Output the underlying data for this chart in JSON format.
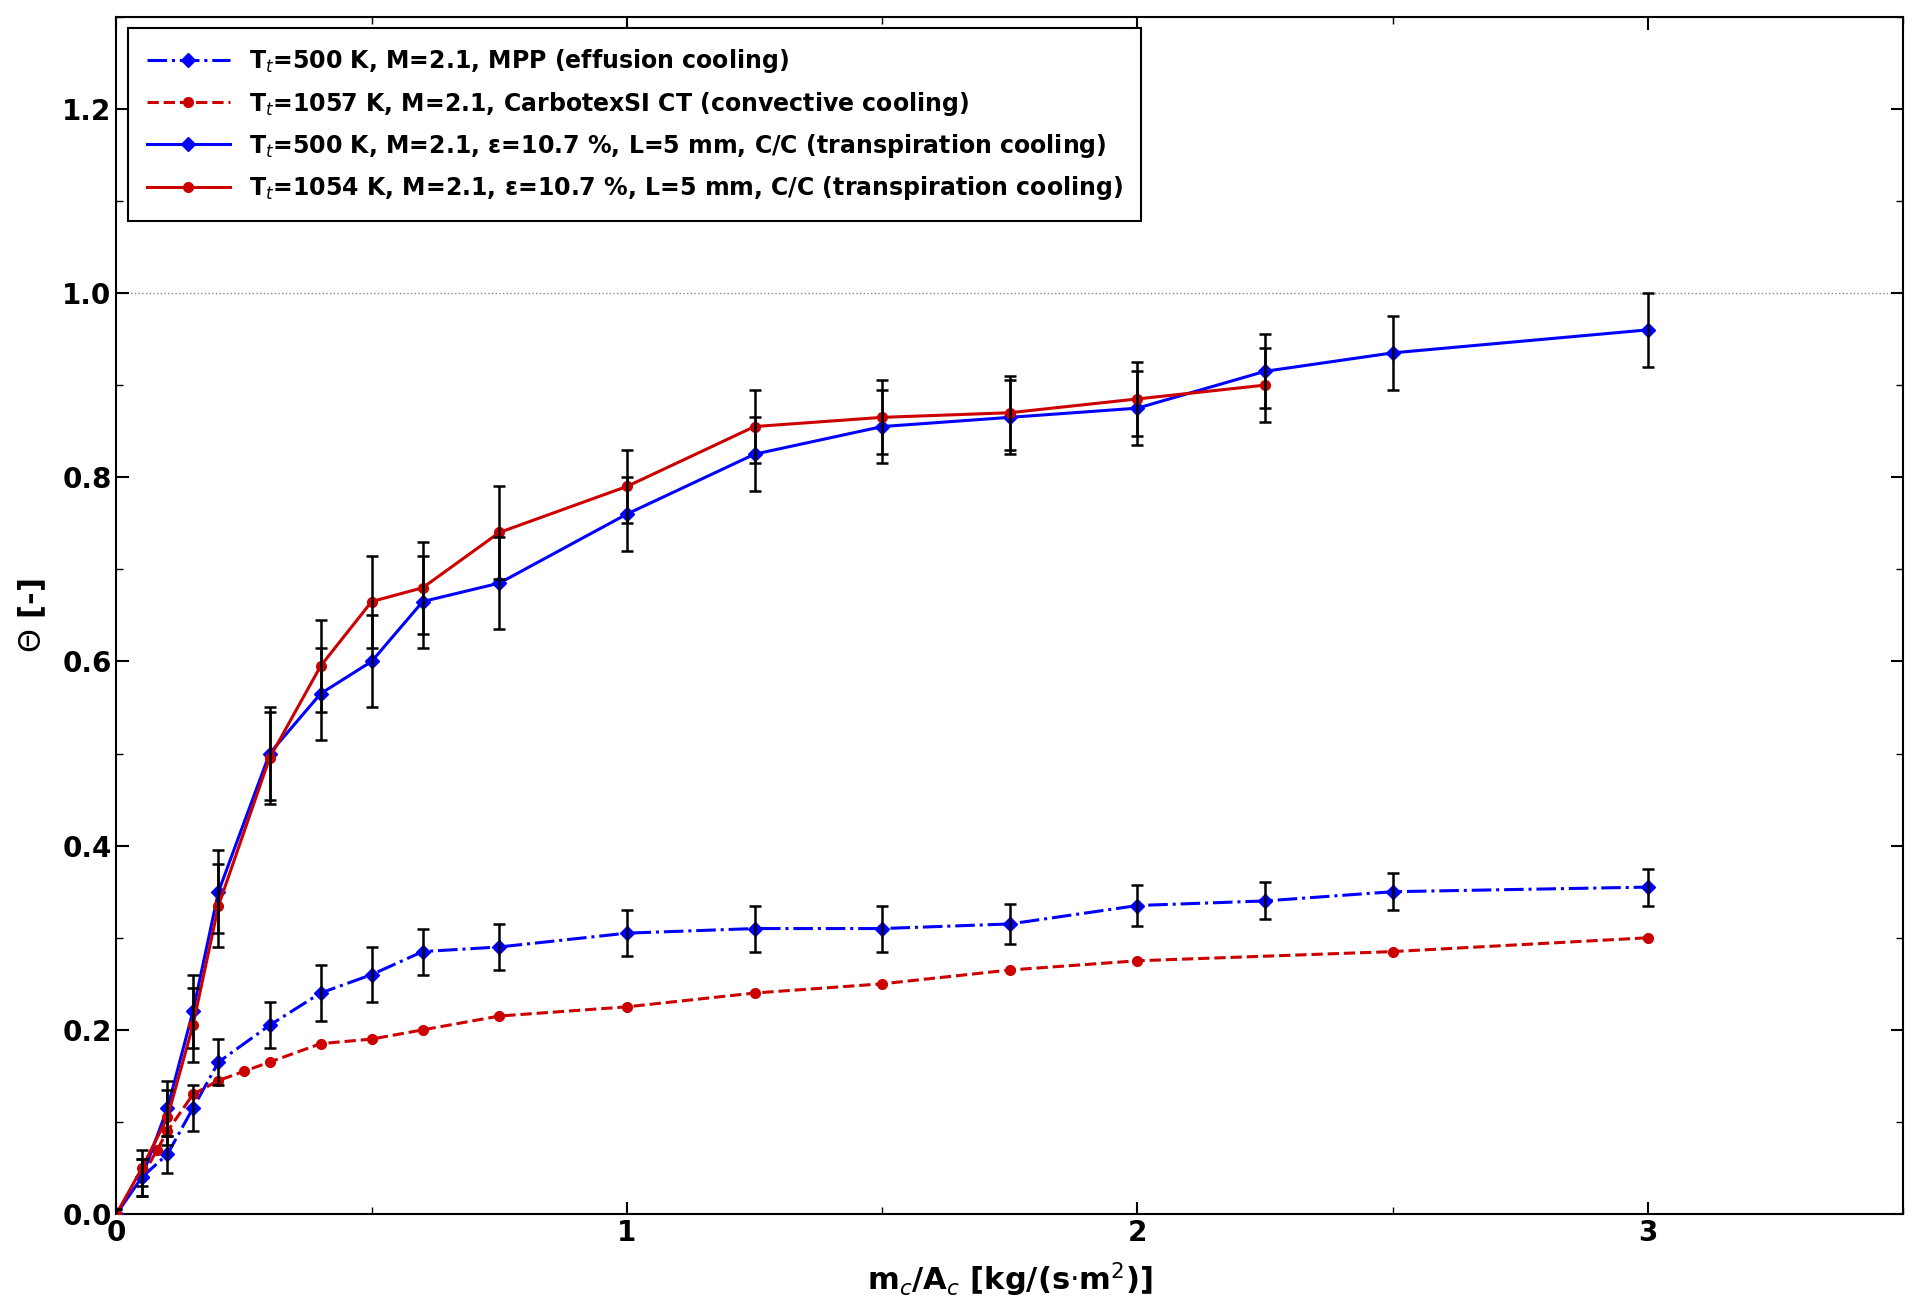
{
  "xlabel": "m$_c$/A$_c$ [kg/(s·m$^2$)]",
  "ylabel": "Θ [-]",
  "xlim": [
    0,
    3.5
  ],
  "ylim": [
    0,
    1.3
  ],
  "xticks": [
    0,
    1,
    2,
    3
  ],
  "yticks": [
    0,
    0.2,
    0.4,
    0.6,
    0.8,
    1.0,
    1.2
  ],
  "series": [
    {
      "label": "T$_t$=500 K, M=2.1, MPP (effusion cooling)",
      "color": "#0000ff",
      "linestyle": "-.",
      "marker": "D",
      "markersize": 7,
      "linewidth": 2.2,
      "x": [
        0.05,
        0.1,
        0.15,
        0.2,
        0.3,
        0.4,
        0.5,
        0.6,
        0.75,
        1.0,
        1.25,
        1.5,
        1.75,
        2.0,
        2.25,
        2.5,
        3.0
      ],
      "y": [
        0.04,
        0.065,
        0.115,
        0.165,
        0.205,
        0.24,
        0.26,
        0.285,
        0.29,
        0.305,
        0.31,
        0.31,
        0.315,
        0.335,
        0.34,
        0.35,
        0.355
      ],
      "yerr": [
        0.02,
        0.02,
        0.025,
        0.025,
        0.025,
        0.03,
        0.03,
        0.025,
        0.025,
        0.025,
        0.025,
        0.025,
        0.022,
        0.022,
        0.02,
        0.02,
        0.02
      ],
      "has_errorbars": true
    },
    {
      "label": "T$_t$=1057 K, M=2.1, CarbotexSI CT (convective cooling)",
      "color": "#cc0000",
      "linestyle": "--",
      "marker": "o",
      "markersize": 7,
      "linewidth": 2.2,
      "x": [
        0.05,
        0.08,
        0.1,
        0.15,
        0.2,
        0.25,
        0.3,
        0.4,
        0.5,
        0.6,
        0.75,
        1.0,
        1.25,
        1.5,
        1.75,
        2.0,
        2.5,
        3.0
      ],
      "y": [
        0.04,
        0.07,
        0.09,
        0.13,
        0.145,
        0.155,
        0.165,
        0.185,
        0.19,
        0.2,
        0.215,
        0.225,
        0.24,
        0.25,
        0.265,
        0.275,
        0.285,
        0.3
      ],
      "yerr": null,
      "has_errorbars": false
    },
    {
      "label": "T$_t$=500 K, M=2.1, ε=10.7 %, L=5 mm, C/C (transpiration cooling)",
      "color": "#0000ff",
      "linestyle": "-",
      "marker": "D",
      "markersize": 7,
      "linewidth": 2.2,
      "x": [
        0.0,
        0.05,
        0.1,
        0.15,
        0.2,
        0.3,
        0.4,
        0.5,
        0.6,
        0.75,
        1.0,
        1.25,
        1.5,
        1.75,
        2.0,
        2.25,
        2.5,
        3.0
      ],
      "y": [
        0.0,
        0.04,
        0.115,
        0.22,
        0.35,
        0.5,
        0.565,
        0.6,
        0.665,
        0.685,
        0.76,
        0.825,
        0.855,
        0.865,
        0.875,
        0.915,
        0.935,
        0.96
      ],
      "yerr": [
        0.005,
        0.02,
        0.03,
        0.04,
        0.045,
        0.05,
        0.05,
        0.05,
        0.05,
        0.05,
        0.04,
        0.04,
        0.04,
        0.04,
        0.04,
        0.04,
        0.04,
        0.04
      ],
      "has_errorbars": true
    },
    {
      "label": "T$_t$=1054 K, M=2.1, ε=10.7 %, L=5 mm, C/C (transpiration cooling)",
      "color": "#cc0000",
      "linestyle": "-",
      "marker": "o",
      "markersize": 7,
      "linewidth": 2.2,
      "x": [
        0.0,
        0.05,
        0.1,
        0.15,
        0.2,
        0.3,
        0.4,
        0.5,
        0.6,
        0.75,
        1.0,
        1.25,
        1.5,
        1.75,
        2.0,
        2.25
      ],
      "y": [
        0.0,
        0.05,
        0.105,
        0.205,
        0.335,
        0.495,
        0.595,
        0.665,
        0.68,
        0.74,
        0.79,
        0.855,
        0.865,
        0.87,
        0.885,
        0.9
      ],
      "yerr": [
        0.005,
        0.02,
        0.03,
        0.04,
        0.045,
        0.05,
        0.05,
        0.05,
        0.05,
        0.05,
        0.04,
        0.04,
        0.04,
        0.04,
        0.04,
        0.04
      ],
      "has_errorbars": true
    }
  ],
  "hline_y": 1.0,
  "hline_style": ":",
  "hline_color": "#888888",
  "hline_linewidth": 1.0,
  "background_color": "#ffffff",
  "legend_loc": "upper left",
  "legend_fontsize": 17,
  "tick_fontsize": 20,
  "label_fontsize": 22,
  "errorbar_color": "black",
  "errorbar_linewidth": 1.8,
  "errorbar_capsize": 4,
  "errorbar_capthick": 1.8
}
